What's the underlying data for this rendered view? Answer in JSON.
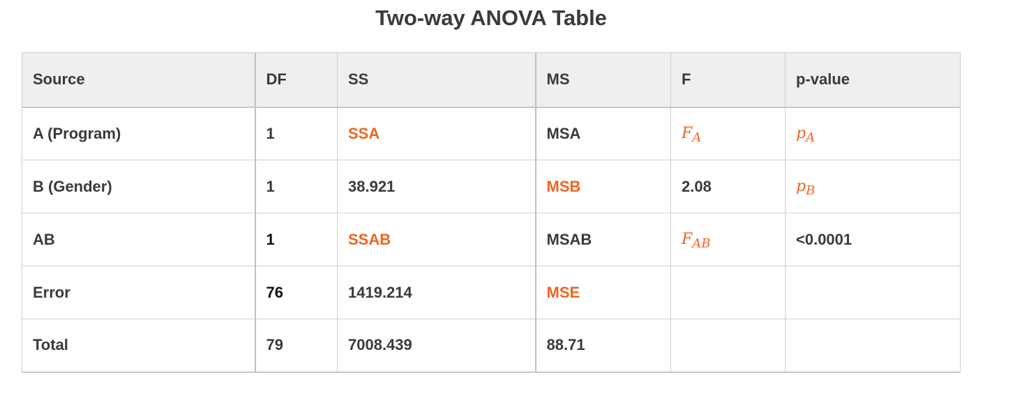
{
  "title": "Two-way ANOVA Table",
  "columns": [
    "Source",
    "DF",
    "SS",
    "MS",
    "F",
    "p-value"
  ],
  "rows": [
    {
      "source": "A (Program)",
      "df": "1",
      "ss": "SSA",
      "ms": "MSA",
      "f": {
        "base": "F",
        "sub": "A"
      },
      "p": {
        "base": "p",
        "sub": "A"
      }
    },
    {
      "source": "B (Gender)",
      "df": "1",
      "ss": "38.921",
      "ms": "MSB",
      "f": "2.08",
      "p": {
        "base": "p",
        "sub": "B"
      }
    },
    {
      "source": "AB",
      "df": "1",
      "ss": "SSAB",
      "ms": "MSAB",
      "f": {
        "base": "F",
        "sub": "AB"
      },
      "p": "<0.0001"
    },
    {
      "source": "Error",
      "df": "76",
      "ss": "1419.214",
      "ms": "MSE",
      "f": "",
      "p": ""
    },
    {
      "source": "Total",
      "df": "79",
      "ss": "7008.439",
      "ms": "88.71",
      "f": "",
      "p": ""
    }
  ],
  "colors": {
    "highlight": "#f0641e",
    "text": "#3a3a3a",
    "header_bg": "#efefef",
    "border": "#cfcfcf"
  }
}
